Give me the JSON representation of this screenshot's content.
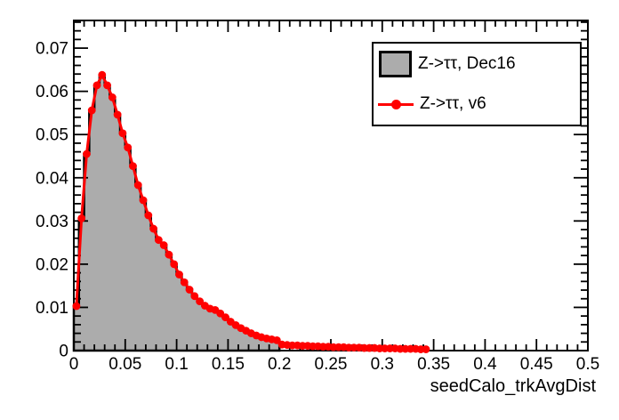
{
  "colors": {
    "background": "#ffffff",
    "frame": "#000000",
    "hist_fill": "#acacac",
    "hist_line": "#000000",
    "series_red": "#ff0000"
  },
  "legend": {
    "items": [
      {
        "label": "Z->ττ, Dec16",
        "swatch": "filled-gray-box",
        "fill": "#acacac",
        "border": "#000000"
      },
      {
        "label": "Z->ττ, v6",
        "swatch": "red-line-with-marker",
        "color": "#ff0000"
      }
    ]
  },
  "chart_data": {
    "type": "line",
    "title": "",
    "xlabel": "seedCalo_trkAvgDist",
    "ylabel": "",
    "xlim": [
      0,
      0.5
    ],
    "ylim": [
      0,
      0.0764
    ],
    "grid": false,
    "legend_position": "top-right",
    "x_tick_values": [
      0,
      0.05,
      0.1,
      0.15,
      0.2,
      0.25,
      0.3,
      0.35,
      0.4,
      0.45,
      0.5
    ],
    "x_tick_labels": [
      "0",
      "0.05",
      "0.1",
      "0.15",
      "0.2",
      "0.25",
      "0.3",
      "0.35",
      "0.4",
      "0.45",
      "0.5"
    ],
    "y_tick_values": [
      0,
      0.01,
      0.02,
      0.03,
      0.04,
      0.05,
      0.06,
      0.07
    ],
    "y_tick_labels": [
      "0",
      "0.01",
      "0.02",
      "0.03",
      "0.04",
      "0.05",
      "0.06",
      "0.07"
    ],
    "x_minor_step": 0.01,
    "y_minor_step": 0.002,
    "bin_width": 0.005,
    "series": [
      {
        "name": "Z->ττ, Dec16",
        "style": "filled-step-histogram",
        "fill_color": "#acacac",
        "line_color": "#000000",
        "x_start": 0,
        "values": [
          0.0103,
          0.0306,
          0.0455,
          0.0556,
          0.0614,
          0.0638,
          0.0614,
          0.0586,
          0.0546,
          0.0503,
          0.047,
          0.0427,
          0.0383,
          0.0348,
          0.0313,
          0.0282,
          0.0256,
          0.0244,
          0.0222,
          0.02,
          0.0176,
          0.0158,
          0.0141,
          0.0126,
          0.0114,
          0.0104,
          0.0097,
          0.0094,
          0.0086,
          0.0077,
          0.0067,
          0.0059,
          0.0052,
          0.0046,
          0.004,
          0.0035,
          0.0031,
          0.0028,
          0.0026,
          0.0024
        ]
      },
      {
        "name": "Z->ττ, v6",
        "style": "line-with-markers",
        "color": "#ff0000",
        "x_start": 0,
        "values": [
          0.0103,
          0.0306,
          0.0455,
          0.0556,
          0.0614,
          0.0638,
          0.0614,
          0.0586,
          0.0546,
          0.0503,
          0.047,
          0.0427,
          0.0383,
          0.0348,
          0.0313,
          0.0282,
          0.0256,
          0.0244,
          0.0222,
          0.02,
          0.0176,
          0.0158,
          0.0141,
          0.0126,
          0.0114,
          0.0104,
          0.0097,
          0.0094,
          0.0086,
          0.0077,
          0.0067,
          0.0059,
          0.0052,
          0.0046,
          0.004,
          0.0035,
          0.0031,
          0.0028,
          0.0026,
          0.0024,
          0.0014,
          0.0013,
          0.0012,
          0.0012,
          0.0011,
          0.0011,
          0.001,
          0.001,
          0.0009,
          0.0009,
          0.0008,
          0.0008,
          0.0008,
          0.0007,
          0.0007,
          0.0007,
          0.0006,
          0.0006,
          0.0006,
          0.0005,
          0.0005,
          0.0005,
          0.0005,
          0.0004,
          0.0004,
          0.0004,
          0.0004,
          0.0003,
          0.0003
        ]
      }
    ]
  }
}
